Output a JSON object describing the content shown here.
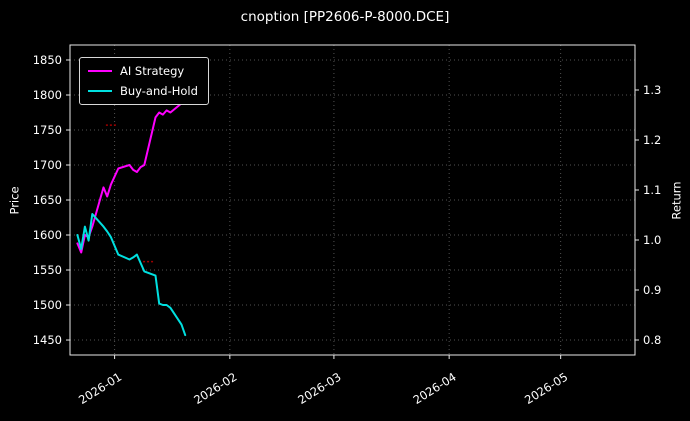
{
  "colors": {
    "figure_bg": "#000000",
    "plot_bg": "#000000",
    "text": "#ffffff",
    "grid": "#525252",
    "spine": "#e8e8e8",
    "marker": "#a00000"
  },
  "legend": {
    "position": "upper-left"
  },
  "chart_data": {
    "type": "line",
    "title": "cnoption [PP2606-P-8000.DCE]",
    "ylabel_left": "Price",
    "ylabel_right": "Return",
    "grid": "dotted",
    "x_range": [
      "2025-12-20",
      "2026-05-21"
    ],
    "left_range": [
      1428.6,
      1871.4
    ],
    "right_range": [
      0.77,
      1.39
    ],
    "left_ticks": [
      1450,
      1500,
      1550,
      1600,
      1650,
      1700,
      1750,
      1800,
      1850
    ],
    "right_ticks": [
      0.8,
      0.9,
      1.0,
      1.1,
      1.2,
      1.3
    ],
    "x_ticks": [
      {
        "date": "2026-01-01",
        "label": "2026-01"
      },
      {
        "date": "2026-02-01",
        "label": "2026-02"
      },
      {
        "date": "2026-03-01",
        "label": "2026-03"
      },
      {
        "date": "2026-04-01",
        "label": "2026-04"
      },
      {
        "date": "2026-05-01",
        "label": "2026-05"
      }
    ],
    "series": [
      {
        "name": "AI Strategy",
        "color": "#ff00ff",
        "axis": "left",
        "dates": [
          "2025-12-22",
          "2025-12-23",
          "2025-12-24",
          "2025-12-25",
          "2025-12-26",
          "2025-12-29",
          "2025-12-30",
          "2025-12-31",
          "2026-01-02",
          "2026-01-05",
          "2026-01-06",
          "2026-01-07",
          "2026-01-08",
          "2026-01-09",
          "2026-01-12",
          "2026-01-13",
          "2026-01-14",
          "2026-01-15",
          "2026-01-16",
          "2026-01-19",
          "2026-01-20"
        ],
        "values": [
          1588,
          1575,
          1600,
          1597,
          1612,
          1668,
          1655,
          1672,
          1695,
          1700,
          1693,
          1690,
          1697,
          1700,
          1768,
          1775,
          1772,
          1778,
          1775,
          1788,
          1793
        ]
      },
      {
        "name": "Buy-and-Hold",
        "color": "#00e0e0",
        "axis": "left",
        "dates": [
          "2025-12-22",
          "2025-12-23",
          "2025-12-24",
          "2025-12-25",
          "2025-12-26",
          "2025-12-29",
          "2025-12-30",
          "2025-12-31",
          "2026-01-02",
          "2026-01-05",
          "2026-01-06",
          "2026-01-07",
          "2026-01-08",
          "2026-01-09",
          "2026-01-12",
          "2026-01-13",
          "2026-01-14",
          "2026-01-15",
          "2026-01-16",
          "2026-01-19",
          "2026-01-20"
        ],
        "values": [
          1600,
          1580,
          1612,
          1592,
          1630,
          1612,
          1605,
          1597,
          1572,
          1565,
          1568,
          1572,
          1560,
          1548,
          1542,
          1502,
          1500,
          1500,
          1496,
          1472,
          1457
        ]
      }
    ],
    "markers": [
      {
        "date": "2025-12-31",
        "value": 1757
      },
      {
        "date": "2026-01-10",
        "value": 1562
      }
    ]
  }
}
